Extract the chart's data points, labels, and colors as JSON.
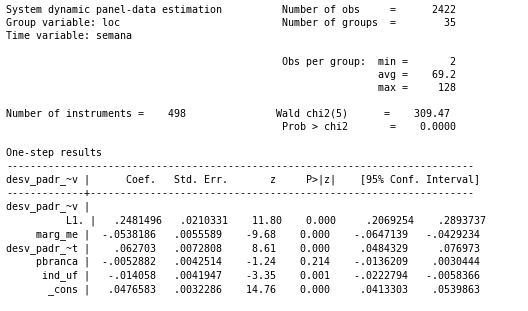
{
  "content": [
    "System dynamic panel-data estimation          Number of obs     =      2422",
    "Group variable: loc                           Number of groups  =        35",
    "Time variable: semana",
    "",
    "                                              Obs per group:  min =       2",
    "                                                              avg =    69.2",
    "                                                              max =     128",
    "",
    "Number of instruments =    498               Wald chi2(5)      =    309.47",
    "                                              Prob > chi2       =    0.0000",
    "",
    "One-step results",
    "------------------------------------------------------------------------------",
    "desv_padr_~v |      Coef.   Std. Err.       z     P>|z|    [95% Conf. Interval]",
    "-------------+----------------------------------------------------------------",
    "desv_padr_~v |",
    "          L1. |   .2481496   .0210331    11.80    0.000     .2069254    .2893737",
    "     marg_me |  -.0538186   .0055589    -9.68    0.000    -.0647139   -.0429234",
    "desv_padr_~t |    .062703   .0072808     8.61    0.000     .0484329     .076973",
    "     pbranca |  -.0052882   .0042514    -1.24    0.214    -.0136209    .0030444",
    "      ind_uf |   -.014058   .0041947    -3.35    0.001    -.0222794   -.0058366",
    "       _cons |   .0476583   .0032286    14.76    0.000     .0413303    .0539863"
  ],
  "font_size": 7.2,
  "font_family": "monospace",
  "bg_color": "#ffffff",
  "text_color": "#000000",
  "figsize": [
    5.28,
    3.11
  ],
  "dpi": 100
}
